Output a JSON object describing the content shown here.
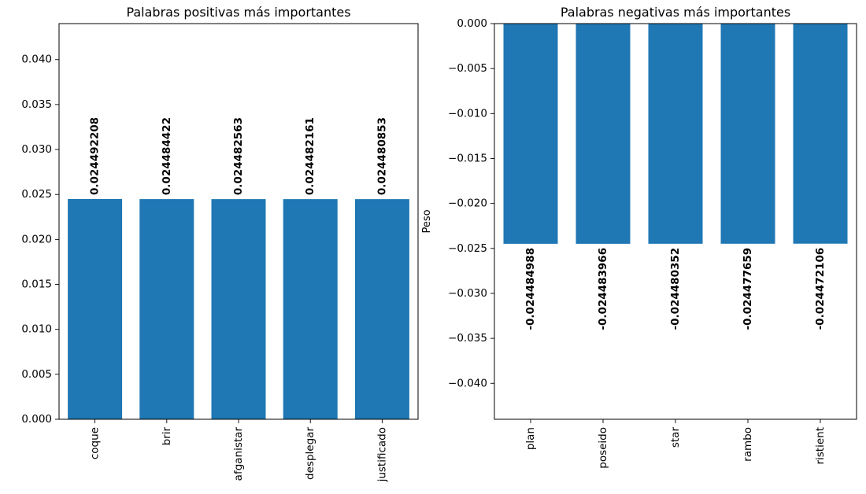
{
  "chart_data": [
    {
      "type": "bar",
      "title": "Palabras positivas más importantes",
      "xlabel": "",
      "ylabel": "",
      "categories": [
        "coque",
        "brir",
        "afganistar",
        "desplegar",
        "justificado"
      ],
      "values": [
        0.024492208,
        0.024484422,
        0.024482563,
        0.024482161,
        0.024480853
      ],
      "data_labels": [
        "0.024492208",
        "0.024484422",
        "0.024482563",
        "0.024482161",
        "0.024480853"
      ],
      "ylim": [
        0,
        0.044
      ],
      "yticks": [
        0,
        0.005,
        0.01,
        0.015,
        0.02,
        0.025,
        0.03,
        0.035,
        0.04
      ],
      "ytick_labels": [
        "0.000",
        "0.005",
        "0.010",
        "0.015",
        "0.020",
        "0.025",
        "0.030",
        "0.035",
        "0.040"
      ],
      "bar_color": "#1f77b4",
      "grid": false
    },
    {
      "type": "bar",
      "title": "Palabras negativas más importantes",
      "xlabel": "",
      "ylabel": "Peso",
      "categories": [
        "plan",
        "poseido",
        "star",
        "rambo",
        "ristient"
      ],
      "values": [
        -0.024484988,
        -0.024483966,
        -0.024480352,
        -0.024477659,
        -0.024472106
      ],
      "data_labels": [
        "-0.024484988",
        "-0.024483966",
        "-0.024480352",
        "-0.024477659",
        "-0.024472106"
      ],
      "ylim": [
        -0.044,
        0
      ],
      "yticks": [
        0,
        -0.005,
        -0.01,
        -0.015,
        -0.02,
        -0.025,
        -0.03,
        -0.035,
        -0.04
      ],
      "ytick_labels": [
        "0.000",
        "−0.005",
        "−0.010",
        "−0.015",
        "−0.020",
        "−0.025",
        "−0.030",
        "−0.035",
        "−0.040"
      ],
      "bar_color": "#1f77b4",
      "grid": false
    }
  ]
}
